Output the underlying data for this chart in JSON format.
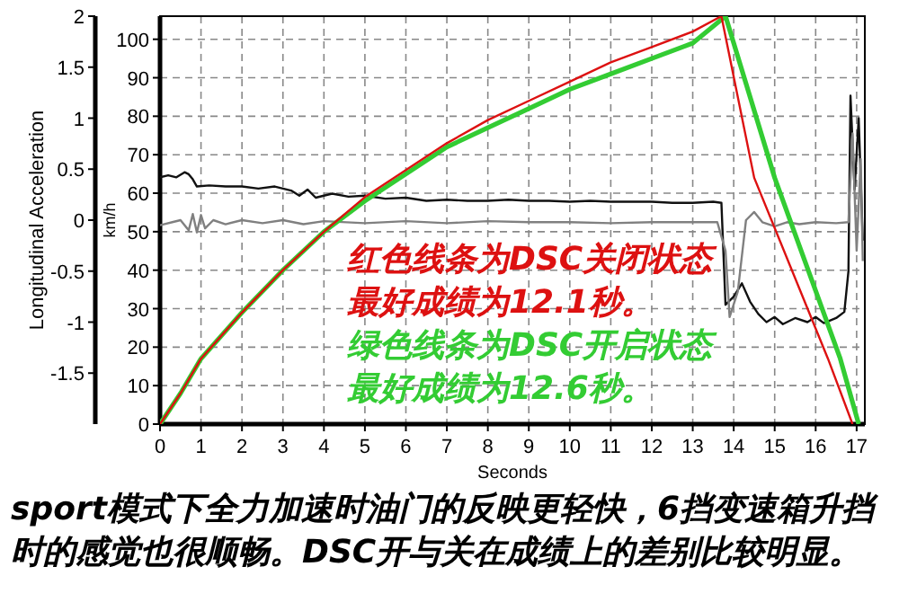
{
  "chart_data": {
    "type": "line",
    "xlabel": "Seconds",
    "ylabel": "km/h",
    "y2label": "Longitudinal Acceleration",
    "xlim": [
      0,
      17.2
    ],
    "xticks": [
      0,
      1,
      2,
      3,
      4,
      5,
      6,
      7,
      8,
      9,
      10,
      11,
      12,
      13,
      14,
      15,
      16,
      17
    ],
    "ylim": [
      0,
      106
    ],
    "yticks": [
      0,
      10,
      20,
      30,
      40,
      50,
      60,
      70,
      80,
      90,
      100
    ],
    "y2lim": [
      -2,
      2
    ],
    "y2ticks": [
      -1.5,
      -1,
      -0.5,
      0,
      0.5,
      1,
      1.5,
      2
    ],
    "grid": true,
    "line_style": "solid",
    "series": [
      {
        "color": "#dd1111",
        "x": [
          0,
          0.5,
          1,
          2,
          3,
          4,
          5,
          6,
          7,
          8,
          9,
          10,
          11,
          12,
          13,
          13.7,
          14.5,
          16.3,
          16.9
        ],
        "values": [
          0,
          8,
          17,
          29,
          40,
          50,
          59,
          66,
          73,
          79,
          84,
          89,
          94,
          98,
          102,
          106,
          64,
          17,
          0
        ]
      },
      {
        "color": "#33cc33",
        "x": [
          0,
          0.5,
          1,
          2,
          3,
          4,
          5,
          6,
          7,
          8,
          9,
          10,
          11,
          12,
          13,
          13.8,
          15.0,
          16.6,
          17.05
        ],
        "values": [
          0,
          8,
          17,
          29,
          40,
          50,
          58,
          65,
          72,
          77,
          82,
          87,
          91,
          95,
          99,
          106,
          64,
          17,
          0
        ]
      },
      {
        "axis": "y2",
        "color": "#111111",
        "x": [
          0,
          0.2,
          0.4,
          0.6,
          0.7,
          0.8,
          0.9,
          1.2,
          1.6,
          2,
          2.4,
          2.8,
          3.2,
          3.4,
          3.6,
          3.8,
          4.2,
          4.6,
          5,
          5.5,
          6,
          6.5,
          7,
          7.5,
          8,
          8.5,
          9,
          9.5,
          10,
          10.5,
          11,
          11.5,
          12,
          12.5,
          13,
          13.5,
          13.7,
          13.8,
          14.0,
          14.2,
          14.4,
          14.6,
          14.8,
          15,
          15.2,
          15.5,
          15.8,
          16,
          16.2,
          16.5,
          16.7,
          16.8,
          16.85,
          16.95,
          17.05,
          17.15
        ],
        "values": [
          0.42,
          0.44,
          0.42,
          0.47,
          0.45,
          0.4,
          0.33,
          0.34,
          0.33,
          0.33,
          0.31,
          0.33,
          0.29,
          0.24,
          0.3,
          0.22,
          0.26,
          0.23,
          0.24,
          0.21,
          0.22,
          0.19,
          0.2,
          0.19,
          0.19,
          0.2,
          0.19,
          0.19,
          0.18,
          0.19,
          0.18,
          0.18,
          0.18,
          0.17,
          0.17,
          0.18,
          0.17,
          -0.83,
          -0.75,
          -0.62,
          -0.8,
          -0.92,
          -1.0,
          -0.95,
          -1.02,
          -0.96,
          -1.0,
          -0.95,
          -1.01,
          -0.96,
          -0.9,
          -0.5,
          1.22,
          0.3,
          1.0,
          -0.2
        ]
      },
      {
        "axis": "y2",
        "color": "#808080",
        "x": [
          0,
          0.3,
          0.5,
          0.7,
          0.8,
          0.9,
          1.0,
          1.1,
          1.3,
          1.6,
          2,
          2.5,
          3,
          3.5,
          4,
          5,
          6,
          7,
          8,
          9,
          10,
          11,
          12,
          13,
          13.6,
          13.8,
          13.9,
          14.1,
          14.3,
          14.5,
          14.7,
          15,
          15.3,
          15.6,
          16,
          16.5,
          16.8,
          16.9,
          17.0,
          17.1,
          17.15
        ],
        "values": [
          -0.05,
          -0.02,
          0.0,
          -0.1,
          0.06,
          -0.12,
          0.05,
          -0.08,
          0.0,
          -0.04,
          0.0,
          -0.03,
          0.0,
          -0.04,
          -0.01,
          -0.03,
          -0.01,
          -0.03,
          -0.01,
          -0.02,
          -0.02,
          -0.03,
          -0.02,
          -0.02,
          -0.02,
          -0.3,
          -0.95,
          -0.7,
          0.0,
          0.08,
          -0.02,
          -0.06,
          -0.02,
          -0.04,
          -0.02,
          -0.03,
          -0.02,
          0.85,
          -0.3,
          0.6,
          -0.4
        ]
      }
    ],
    "annotations": [
      "红色线条为DSC关闭状态",
      "最好成绩为12.1秒。",
      "绿色线条为DSC开启状态",
      "最好成绩为12.6秒。",
      "sport模式下全力加速时油门的反映更轻快，6挡变速箱升挡时的感觉也很顺畅。DSC开与关在成绩上的差别比较明显。"
    ]
  }
}
